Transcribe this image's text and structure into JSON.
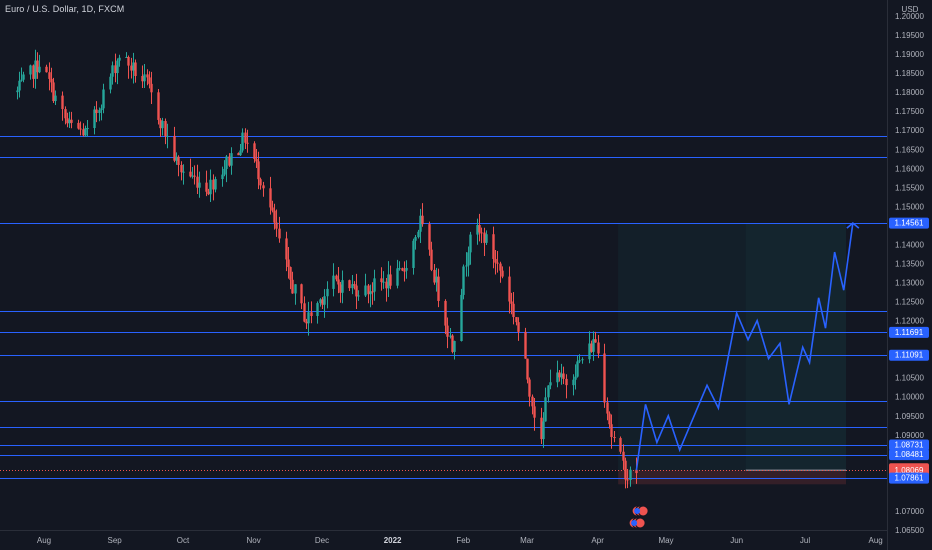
{
  "header": {
    "symbol_title": "Euro / U.S. Dollar, 1D, FXCM"
  },
  "price_axis": {
    "currency": "USD",
    "tick_labels": [
      "1.20000",
      "1.19500",
      "1.19000",
      "1.18500",
      "1.18000",
      "1.17500",
      "1.17000",
      "1.16500",
      "1.16000",
      "1.15500",
      "1.15000",
      "1.14000",
      "1.13500",
      "1.13000",
      "1.12500",
      "1.12000",
      "1.10500",
      "1.10000",
      "1.09500",
      "1.09000",
      "1.07000",
      "1.06500"
    ],
    "badges": [
      {
        "text": "1.14561",
        "price": 1.14561,
        "style": "line"
      },
      {
        "text": "1.11691",
        "price": 1.11691,
        "style": "line"
      },
      {
        "text": "1.11091",
        "price": 1.11091,
        "style": "line"
      },
      {
        "text": "1.08731",
        "price": 1.08731,
        "style": "line"
      },
      {
        "text": "1.08481",
        "price": 1.08481,
        "style": "line"
      },
      {
        "text": "1.08069",
        "price": 1.08069,
        "style": "last",
        "sub": "04:43:34"
      },
      {
        "text": "1.07861",
        "price": 1.07861,
        "style": "line"
      }
    ]
  },
  "time_axis": {
    "labels": [
      "Aug",
      "Sep",
      "Oct",
      "Nov",
      "Dec",
      "2022",
      "Feb",
      "Mar",
      "Apr",
      "May",
      "Jun",
      "Jul",
      "Aug"
    ]
  },
  "colors": {
    "background": "#131722",
    "up_candle": "#26a69a",
    "down_candle": "#ef5350",
    "level_line": "#2962ff",
    "projection": "#2962ff",
    "last_price": "#ef5350",
    "target_zone": "#26a69a",
    "stop_zone": "#ef5350"
  },
  "chart_data": {
    "type": "candlestick",
    "title": "Euro / U.S. Dollar, 1D, FXCM",
    "series_name": "EURUSD",
    "ylabel": "USD",
    "ylim": [
      1.0635,
      1.2015
    ],
    "x_range": [
      "2021-07-20",
      "2022-08-20"
    ],
    "log_scale": false,
    "grid": false,
    "ohlc_anchors": [
      {
        "date": "2021-07-20",
        "close": 1.18
      },
      {
        "date": "2021-07-30",
        "close": 1.188
      },
      {
        "date": "2021-08-11",
        "close": 1.1715
      },
      {
        "date": "2021-08-20",
        "close": 1.169
      },
      {
        "date": "2021-09-03",
        "close": 1.19
      },
      {
        "date": "2021-09-15",
        "close": 1.182
      },
      {
        "date": "2021-09-29",
        "close": 1.16
      },
      {
        "date": "2021-10-12",
        "close": 1.155
      },
      {
        "date": "2021-10-28",
        "close": 1.168
      },
      {
        "date": "2021-11-05",
        "close": 1.156
      },
      {
        "date": "2021-11-16",
        "close": 1.132
      },
      {
        "date": "2021-11-24",
        "close": 1.12
      },
      {
        "date": "2021-12-05",
        "close": 1.13
      },
      {
        "date": "2021-12-20",
        "close": 1.128
      },
      {
        "date": "2022-01-05",
        "close": 1.132
      },
      {
        "date": "2022-01-13",
        "close": 1.146
      },
      {
        "date": "2022-01-27",
        "close": 1.113
      },
      {
        "date": "2022-02-04",
        "close": 1.144
      },
      {
        "date": "2022-02-10",
        "close": 1.142
      },
      {
        "date": "2022-02-18",
        "close": 1.132
      },
      {
        "date": "2022-02-24",
        "close": 1.12
      },
      {
        "date": "2022-03-07",
        "close": 1.087
      },
      {
        "date": "2022-03-10",
        "close": 1.105
      },
      {
        "date": "2022-03-18",
        "close": 1.104
      },
      {
        "date": "2022-03-31",
        "close": 1.115
      },
      {
        "date": "2022-04-07",
        "close": 1.09
      },
      {
        "date": "2022-04-12",
        "close": 1.082
      },
      {
        "date": "2022-04-14",
        "close": 1.079
      },
      {
        "date": "2022-04-18",
        "close": 1.0807
      }
    ],
    "horizontal_levels": [
      1.1685,
      1.163,
      1.14561,
      1.1225,
      1.11691,
      1.11091,
      1.099,
      1.092,
      1.08731,
      1.08481,
      1.07861
    ],
    "last_price": 1.08069,
    "last_price_line": 1.0807,
    "projection_path": [
      {
        "date": "2022-04-18",
        "price": 1.0807
      },
      {
        "date": "2022-04-22",
        "price": 1.098
      },
      {
        "date": "2022-04-27",
        "price": 1.088
      },
      {
        "date": "2022-05-02",
        "price": 1.095
      },
      {
        "date": "2022-05-07",
        "price": 1.086
      },
      {
        "date": "2022-05-19",
        "price": 1.103
      },
      {
        "date": "2022-05-24",
        "price": 1.097
      },
      {
        "date": "2022-06-01",
        "price": 1.122
      },
      {
        "date": "2022-06-06",
        "price": 1.115
      },
      {
        "date": "2022-06-10",
        "price": 1.12
      },
      {
        "date": "2022-06-15",
        "price": 1.11
      },
      {
        "date": "2022-06-20",
        "price": 1.114
      },
      {
        "date": "2022-06-24",
        "price": 1.098
      },
      {
        "date": "2022-06-30",
        "price": 1.113
      },
      {
        "date": "2022-07-03",
        "price": 1.109
      },
      {
        "date": "2022-07-07",
        "price": 1.126
      },
      {
        "date": "2022-07-10",
        "price": 1.118
      },
      {
        "date": "2022-07-14",
        "price": 1.138
      },
      {
        "date": "2022-07-18",
        "price": 1.128
      },
      {
        "date": "2022-07-22",
        "price": 1.14561
      }
    ],
    "position": {
      "type": "long",
      "start_date": "2022-04-10",
      "end_date": "2022-07-19",
      "entry": 1.0807,
      "target": 1.14561,
      "stop": 1.077
    },
    "highlighted_range": {
      "start_date": "2022-06-05",
      "end_date": "2022-07-19"
    }
  }
}
